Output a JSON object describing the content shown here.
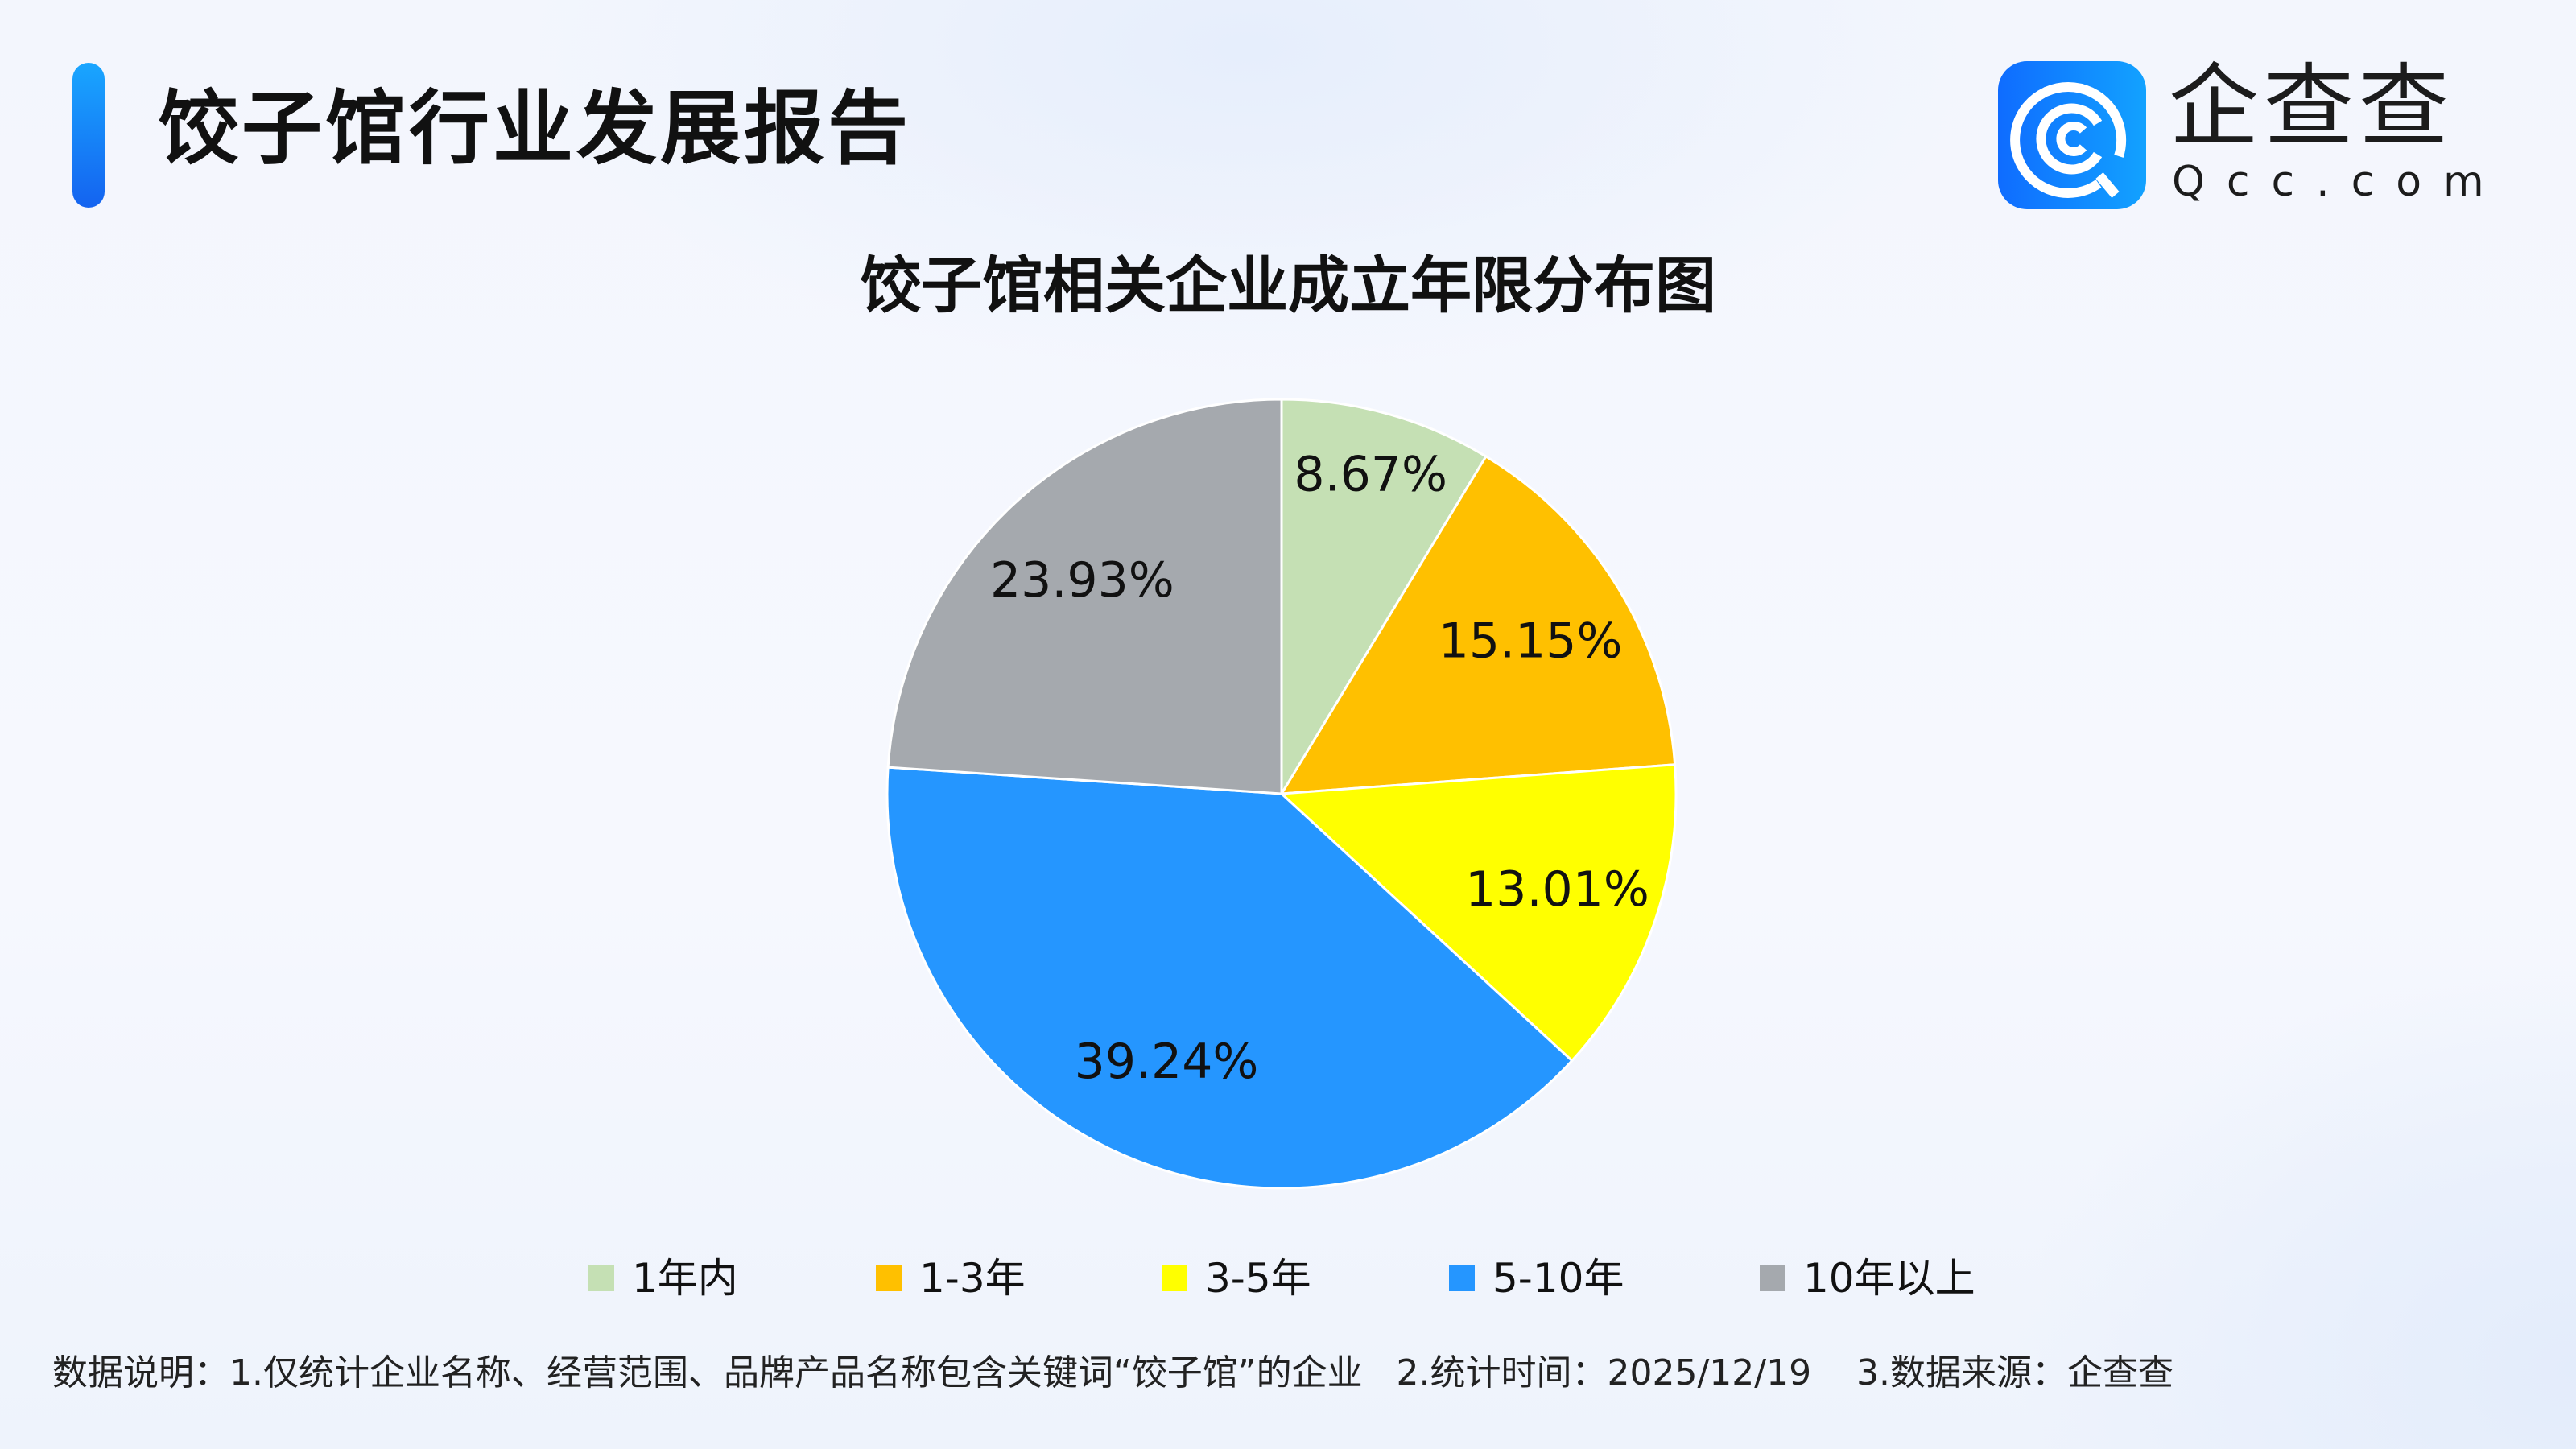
{
  "header": {
    "title": "饺子馆行业发展报告"
  },
  "logo": {
    "cn": "企查查",
    "en": "Qcc.com"
  },
  "chart_data": {
    "type": "pie",
    "title": "饺子馆相关企业成立年限分布图",
    "start": "top",
    "direction": "clockwise",
    "categories": [
      "1年内",
      "1-3年",
      "3-5年",
      "5-10年",
      "10年以上"
    ],
    "values": [
      8.67,
      15.15,
      13.01,
      39.24,
      23.93
    ],
    "labels": [
      "8.67%",
      "15.15%",
      "13.01%",
      "39.24%",
      "23.93%"
    ],
    "colors": [
      "#C5E0B4",
      "#FFC000",
      "#FFFF00",
      "#2596FF",
      "#A5A9AE"
    ],
    "legend_position": "bottom"
  },
  "footnote": "数据说明：1.仅统计企业名称、经营范围、品牌产品名称包含关键词“饺子馆”的企业   2.统计时间：2025/12/19    3.数据来源：企查查"
}
